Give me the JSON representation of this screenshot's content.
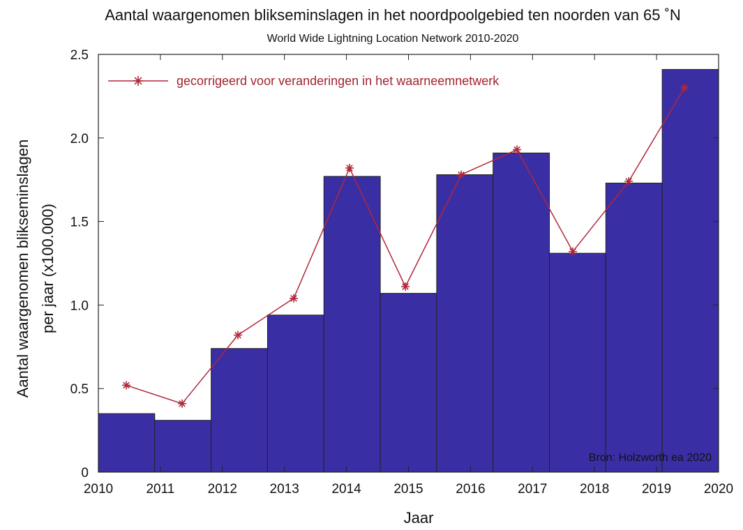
{
  "chart_data": {
    "type": "bar",
    "title": "Aantal waargenomen blikseminslagen in het noordpoolgebied ten noorden van 65 ˚N",
    "subtitle": "World Wide Lightning Location Network 2010-2020",
    "xlabel": "Jaar",
    "ylabel_lines": [
      "Aantal waargenomen blikseminslagen",
      "per jaar (x100.000)"
    ],
    "source": "Bron: Holzworth ea 2020",
    "xlim": [
      2010,
      2020
    ],
    "ylim": [
      0,
      2.5
    ],
    "x_ticks": [
      "2010",
      "2011",
      "2012",
      "2013",
      "2014",
      "2015",
      "2016",
      "2017",
      "2018",
      "2019",
      "2020"
    ],
    "y_ticks": [
      "0",
      "0.5",
      "1.0",
      "1.5",
      "2.0",
      "2.5"
    ],
    "y_tick_values": [
      0,
      0.5,
      1.0,
      1.5,
      2.0,
      2.5
    ],
    "grid": false,
    "legend_position": "top-left",
    "bar_color": "#3a2ea4",
    "bar_edge_color": "#222222",
    "categories": [
      "2010",
      "2011",
      "2012",
      "2013",
      "2014",
      "2015",
      "2016",
      "2017",
      "2018",
      "2019",
      "2020"
    ],
    "bars": [
      0.35,
      0.31,
      0.74,
      0.94,
      1.77,
      1.07,
      1.78,
      1.91,
      1.31,
      1.73,
      2.41
    ],
    "series": [
      {
        "name": "gecorrigeerd voor veranderingen in het waarneemnetwerk",
        "color": "#b0273a",
        "marker": "asterisk",
        "x": [
          2010.45,
          2011.35,
          2012.25,
          2013.15,
          2014.05,
          2014.95,
          2015.85,
          2016.75,
          2017.65,
          2018.55,
          2019.45
        ],
        "values": [
          0.52,
          0.41,
          0.82,
          1.04,
          1.82,
          1.11,
          1.78,
          1.93,
          1.32,
          1.74,
          2.3
        ]
      }
    ]
  }
}
